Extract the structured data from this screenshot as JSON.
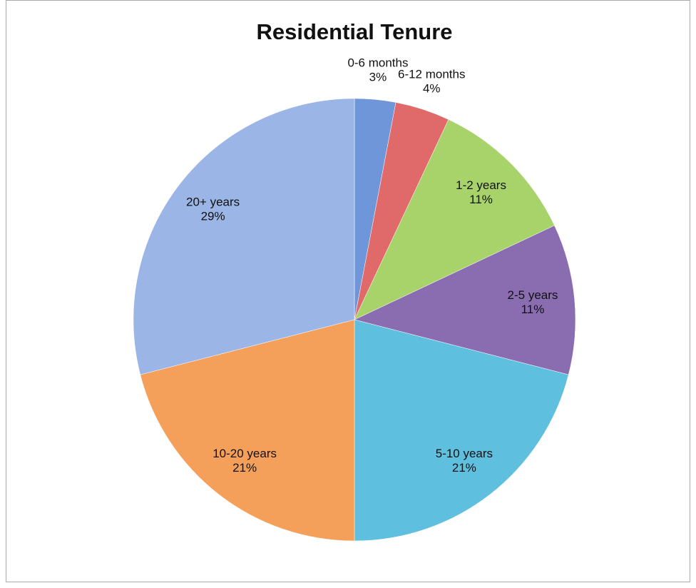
{
  "chart_data": {
    "type": "pie",
    "title": "Residential Tenure",
    "categories": [
      "0-6 months",
      "6-12 months",
      "1-2 years",
      "2-5 years",
      "5-10 years",
      "10-20 years",
      "20+ years"
    ],
    "values": [
      3,
      4,
      11,
      11,
      21,
      21,
      29
    ],
    "value_labels": [
      "3%",
      "4%",
      "11%",
      "11%",
      "21%",
      "21%",
      "29%"
    ],
    "colors": [
      "#6f96d8",
      "#e06a6a",
      "#a8d36a",
      "#8a6cb0",
      "#5fbfdf",
      "#f5a05a",
      "#9ab5e6"
    ]
  }
}
